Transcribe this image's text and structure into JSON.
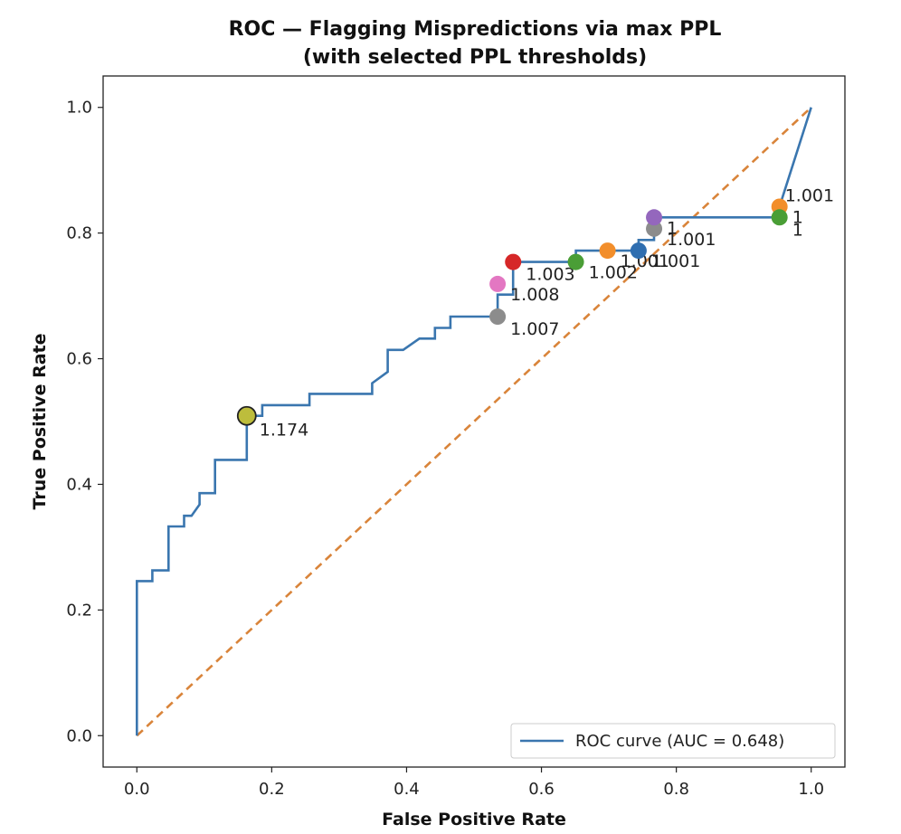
{
  "chart_data": {
    "type": "line",
    "title": "ROC — Flagging Mispredictions via max PPL",
    "subtitle": "(with selected PPL thresholds)",
    "xlabel": "False Positive Rate",
    "ylabel": "True Positive Rate",
    "xlim": [
      -0.05,
      1.05
    ],
    "ylim": [
      -0.05,
      1.05
    ],
    "xticks": [
      "0.0",
      "0.2",
      "0.4",
      "0.6",
      "0.8",
      "1.0"
    ],
    "yticks": [
      "0.0",
      "0.2",
      "0.4",
      "0.6",
      "0.8",
      "1.0"
    ],
    "grid": false,
    "legend": {
      "position": "bottom-right",
      "entries": [
        "ROC curve (AUC = 0.648)"
      ]
    },
    "series": [
      {
        "name": "ROC curve (AUC = 0.648)",
        "color": "#3a76af",
        "points": [
          [
            0.0,
            0.0
          ],
          [
            0.0,
            0.246
          ],
          [
            0.023,
            0.246
          ],
          [
            0.023,
            0.263
          ],
          [
            0.047,
            0.263
          ],
          [
            0.047,
            0.333
          ],
          [
            0.07,
            0.333
          ],
          [
            0.07,
            0.35
          ],
          [
            0.081,
            0.35
          ],
          [
            0.093,
            0.368
          ],
          [
            0.093,
            0.386
          ],
          [
            0.116,
            0.386
          ],
          [
            0.116,
            0.439
          ],
          [
            0.163,
            0.439
          ],
          [
            0.163,
            0.509
          ],
          [
            0.186,
            0.509
          ],
          [
            0.186,
            0.526
          ],
          [
            0.256,
            0.526
          ],
          [
            0.256,
            0.544
          ],
          [
            0.349,
            0.544
          ],
          [
            0.349,
            0.561
          ],
          [
            0.372,
            0.579
          ],
          [
            0.372,
            0.614
          ],
          [
            0.395,
            0.614
          ],
          [
            0.419,
            0.632
          ],
          [
            0.442,
            0.632
          ],
          [
            0.442,
            0.649
          ],
          [
            0.465,
            0.649
          ],
          [
            0.465,
            0.667
          ],
          [
            0.535,
            0.667
          ],
          [
            0.535,
            0.702
          ],
          [
            0.558,
            0.702
          ],
          [
            0.558,
            0.754
          ],
          [
            0.651,
            0.754
          ],
          [
            0.651,
            0.772
          ],
          [
            0.744,
            0.772
          ],
          [
            0.744,
            0.789
          ],
          [
            0.767,
            0.789
          ],
          [
            0.767,
            0.825
          ],
          [
            0.953,
            0.825
          ],
          [
            0.953,
            0.842
          ],
          [
            1.0,
            1.0
          ]
        ]
      },
      {
        "name": "",
        "color": "#d9843a",
        "dashed": true,
        "points": [
          [
            0.0,
            0.0
          ],
          [
            1.0,
            1.0
          ]
        ]
      }
    ],
    "thresholds": [
      {
        "x": 0.163,
        "y": 0.509,
        "label": "1.174",
        "color": "#bdbd3c",
        "edge": true,
        "dx": 14,
        "dy": 22
      },
      {
        "x": 0.535,
        "y": 0.667,
        "label": "1.007",
        "color": "#8c8c8c",
        "dx": 14,
        "dy": 20
      },
      {
        "x": 0.535,
        "y": 0.719,
        "label": "1.008",
        "color": "#e377c2",
        "dx": 14,
        "dy": 18
      },
      {
        "x": 0.558,
        "y": 0.754,
        "label": "1.003",
        "color": "#d62728",
        "dx": 14,
        "dy": 20
      },
      {
        "x": 0.651,
        "y": 0.754,
        "label": "1.002",
        "color": "#4a9e36",
        "dx": 14,
        "dy": 18
      },
      {
        "x": 0.698,
        "y": 0.772,
        "label": "1.001",
        "color": "#f28e2b",
        "dx": 14,
        "dy": 18
      },
      {
        "x": 0.744,
        "y": 0.772,
        "label": "1.001",
        "color": "#2f6eb0",
        "dx": 14,
        "dy": 18
      },
      {
        "x": 0.767,
        "y": 0.807,
        "label": "1.001",
        "color": "#8c8c8c",
        "dx": 14,
        "dy": 18
      },
      {
        "x": 0.767,
        "y": 0.825,
        "label": "1",
        "color": "#9467bd",
        "dx": 14,
        "dy": 18
      },
      {
        "x": 0.953,
        "y": 0.842,
        "label": "1.001",
        "color": "#f28e2b",
        "dx": 6,
        "dy": -6
      },
      {
        "x": 0.953,
        "y": 0.825,
        "label": "1",
        "color": "#4a9e36",
        "dx": 14,
        "dy": 6
      },
      {
        "x": 0.953,
        "y": 0.825,
        "label": "1",
        "color": "#4a9e36",
        "marker": false,
        "dx": 14,
        "dy": 20
      }
    ]
  }
}
